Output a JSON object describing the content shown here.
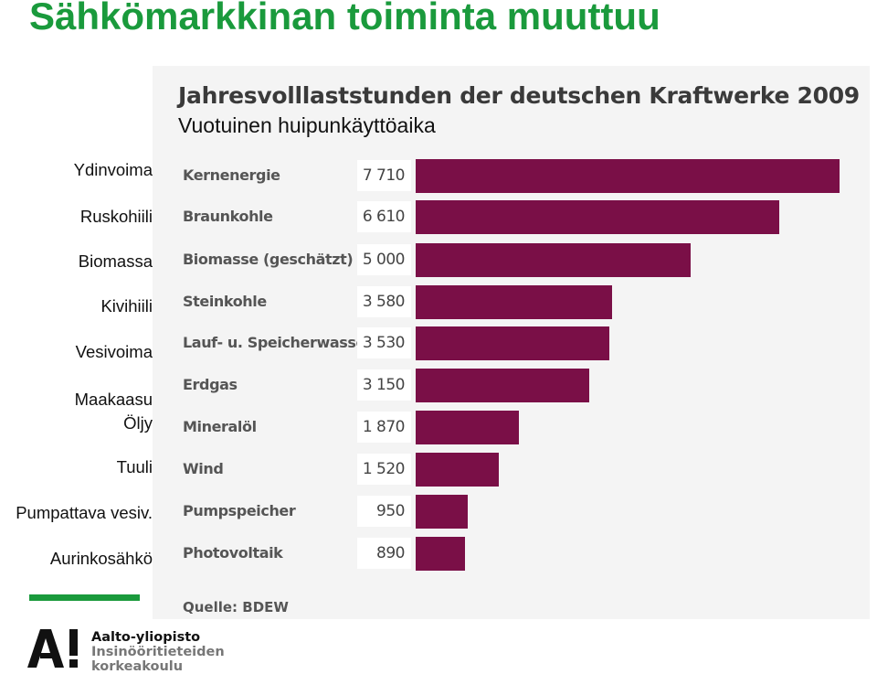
{
  "slide": {
    "title": "Sähkömarkkinan toiminta muuttuu",
    "subtitle": "Vuotuinen huipunkäyttöaika",
    "footer_lines": [
      "Aalto-yliopisto",
      "Insinööritieteiden",
      "korkeakoulu"
    ]
  },
  "chart_data": {
    "type": "bar",
    "orientation": "horizontal",
    "title": "Jahresvolllaststunden der deutschen Kraftwerke 2009",
    "source": "Quelle: BDEW",
    "categories": [
      "Kernenergie",
      "Braunkohle",
      "Biomasse (geschätzt)",
      "Steinkohle",
      "Lauf- u. Speicherwasser",
      "Erdgas",
      "Mineralöl",
      "Wind",
      "Pumpspeicher",
      "Photovoltaik"
    ],
    "categories_fi": [
      "Ydinvoima",
      "Ruskohiili",
      "Biomassa",
      "Kivihiili",
      "Vesivoima",
      "Maakaasu",
      "Öljy",
      "Tuuli",
      "Pumpattava vesiv.",
      "Aurinkosähkö"
    ],
    "value_labels": [
      "7 710",
      "6 610",
      "5 000",
      "3 580",
      "3 530",
      "3 150",
      "1 870",
      "1 520",
      "950",
      "890"
    ],
    "values": [
      7710,
      6610,
      5000,
      3580,
      3530,
      3150,
      1870,
      1520,
      950,
      890
    ],
    "xlim": [
      0,
      7710
    ],
    "grid": false,
    "bar_color": "#7a0f47"
  },
  "colors": {
    "title_green": "#1a9a3c",
    "panel_bg": "#f4f4f4"
  }
}
